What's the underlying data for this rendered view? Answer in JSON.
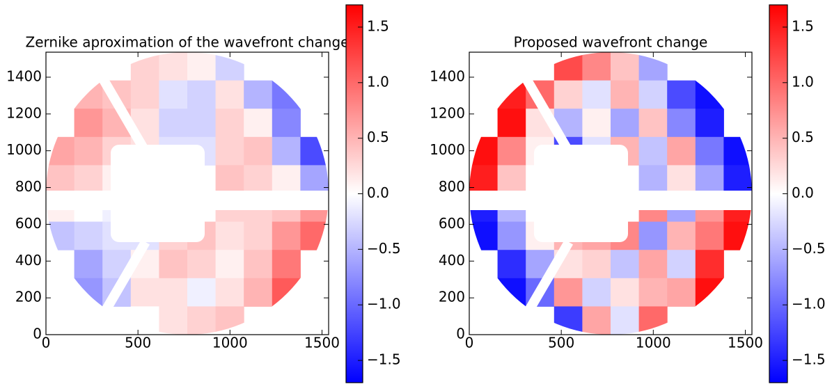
{
  "chart_data": [
    {
      "type": "heatmap",
      "title": "Zernike aproximation of the wavefront change",
      "xlim": [
        0,
        1536
      ],
      "ylim": [
        0,
        1536
      ],
      "xticks": [
        0,
        500,
        1000,
        1500
      ],
      "yticks": [
        0,
        200,
        400,
        600,
        800,
        1000,
        1200,
        1400
      ],
      "z": [
        [
          null,
          null,
          null,
          0.3,
          0.2,
          0.1,
          -0.3,
          null,
          null,
          null
        ],
        [
          null,
          0.5,
          0.4,
          0.3,
          -0.2,
          -0.3,
          0.2,
          -0.5,
          -0.9,
          null
        ],
        [
          null,
          0.7,
          0.5,
          0.2,
          -0.3,
          -0.3,
          0.3,
          0.1,
          -0.8,
          null
        ],
        [
          0.6,
          0.5,
          0.3,
          0.2,
          -0.2,
          -0.2,
          0.3,
          0.4,
          -0.5,
          -1.2
        ],
        [
          0.4,
          0.3,
          0.1,
          null,
          null,
          null,
          0.4,
          0.3,
          0.1,
          -0.6
        ],
        [
          0.1,
          0.0,
          -0.1,
          null,
          null,
          null,
          0.3,
          0.3,
          0.4,
          0.7
        ],
        [
          -0.4,
          -0.3,
          -0.2,
          -0.2,
          0.3,
          0.4,
          0.2,
          0.3,
          0.7,
          1.0
        ],
        [
          null,
          -0.6,
          -0.3,
          0.1,
          0.4,
          0.3,
          0.1,
          0.4,
          0.9,
          null
        ],
        [
          null,
          -0.7,
          -0.4,
          0.2,
          0.2,
          -0.1,
          0.2,
          0.5,
          1.1,
          null
        ],
        [
          null,
          null,
          null,
          0.0,
          0.2,
          0.3,
          0.4,
          null,
          null,
          null
        ]
      ],
      "clim": [
        -1.7,
        1.7
      ],
      "cticks": [
        {
          "value": -1.5,
          "label": "−1.5"
        },
        {
          "value": -1.0,
          "label": "−1.0"
        },
        {
          "value": -0.5,
          "label": "−0.5"
        },
        {
          "value": 0,
          "label": "0.0"
        },
        0.5,
        {
          "value": 1.0,
          "label": "1.0"
        },
        1.5
      ],
      "colormap": [
        "#0000ff",
        "#ffffff",
        "#ff0000"
      ]
    },
    {
      "type": "heatmap",
      "title": "Proposed wavefront change",
      "xlim": [
        0,
        1536
      ],
      "ylim": [
        0,
        1536
      ],
      "xticks": [
        0,
        500,
        1000,
        1500
      ],
      "yticks": [
        0,
        200,
        400,
        600,
        800,
        1000,
        1200,
        1400
      ],
      "z": [
        [
          null,
          null,
          null,
          1.2,
          0.8,
          0.4,
          -0.6,
          null,
          null,
          null
        ],
        [
          null,
          1.5,
          1.0,
          0.3,
          -0.2,
          0.5,
          -0.3,
          -1.2,
          -1.6,
          null
        ],
        [
          null,
          1.6,
          0.2,
          -0.5,
          0.1,
          -0.6,
          0.4,
          -0.8,
          -1.5,
          null
        ],
        [
          1.6,
          0.8,
          0.1,
          -1.2,
          -0.2,
          0.5,
          -0.4,
          0.6,
          -0.9,
          -1.6
        ],
        [
          1.5,
          0.4,
          0.0,
          null,
          null,
          null,
          -0.5,
          0.2,
          -0.6,
          -1.5
        ],
        [
          -1.5,
          -0.5,
          0.0,
          null,
          null,
          null,
          0.8,
          -0.6,
          0.7,
          1.5
        ],
        [
          -1.6,
          -0.7,
          0.1,
          0.5,
          0.6,
          0.8,
          -0.7,
          0.5,
          0.9,
          1.6
        ],
        [
          null,
          -1.4,
          -0.6,
          0.2,
          0.3,
          -0.4,
          0.6,
          -0.3,
          1.4,
          null
        ],
        [
          null,
          -1.6,
          -1.0,
          0.7,
          -0.3,
          0.2,
          0.5,
          0.6,
          1.6,
          null
        ],
        [
          null,
          null,
          null,
          -1.3,
          0.6,
          -0.2,
          1.0,
          null,
          null,
          null
        ]
      ],
      "clim": [
        -1.7,
        1.7
      ],
      "cticks": [
        {
          "value": -1.5,
          "label": "−1.5"
        },
        {
          "value": -1.0,
          "label": "−1.0"
        },
        {
          "value": -0.5,
          "label": "−0.5"
        },
        {
          "value": 0,
          "label": "0.0"
        },
        0.5,
        {
          "value": 1.0,
          "label": "1.0"
        },
        1.5
      ],
      "colormap": [
        "#0000ff",
        "#ffffff",
        "#ff0000"
      ]
    }
  ]
}
